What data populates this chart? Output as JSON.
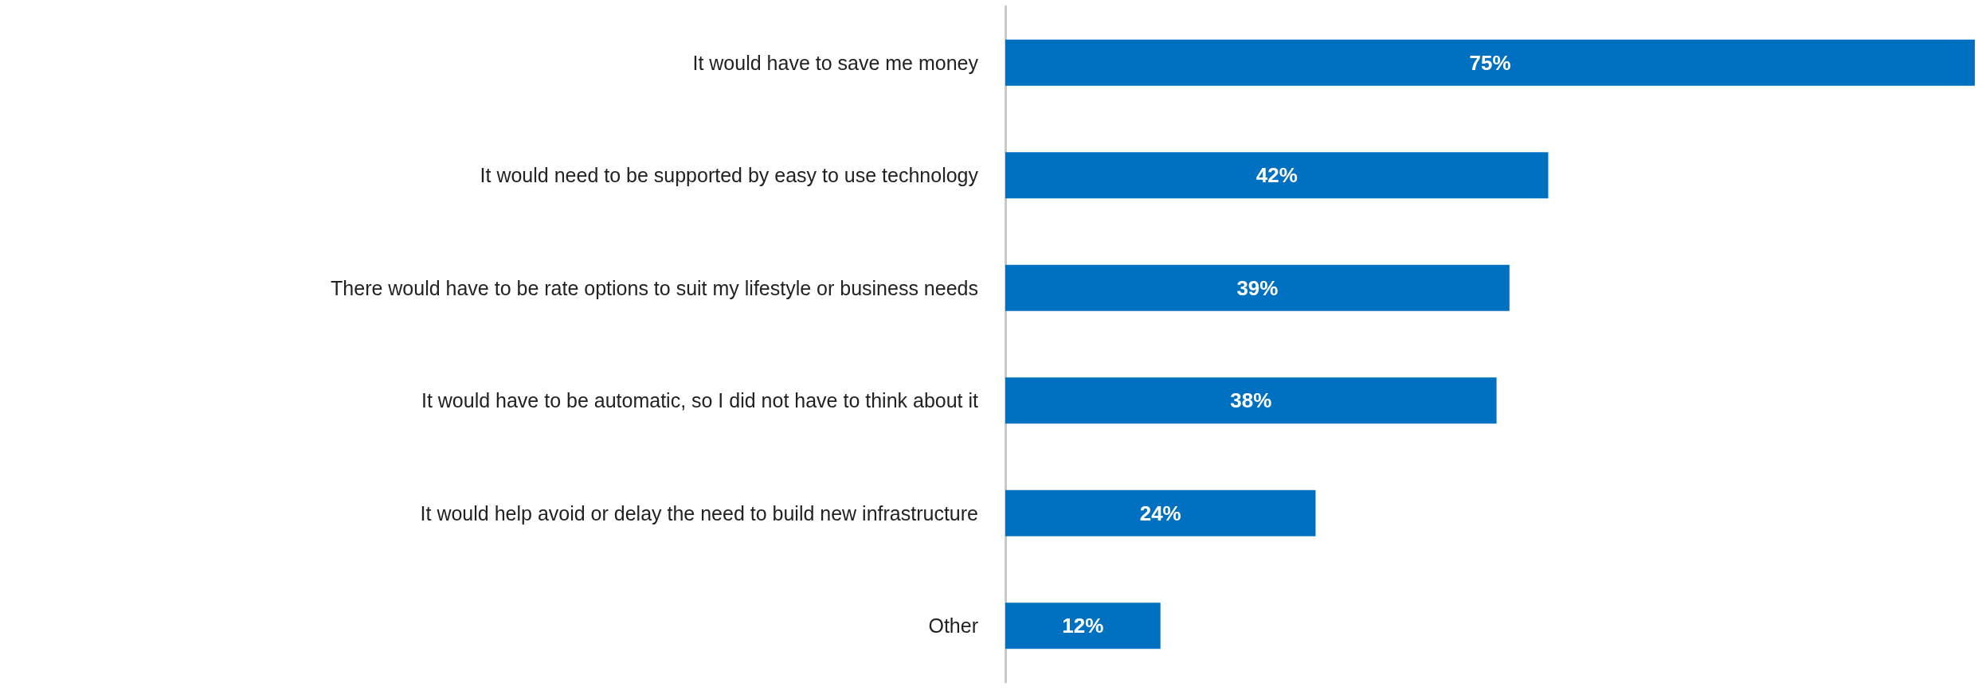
{
  "chart_data": {
    "type": "bar",
    "orientation": "horizontal",
    "categories": [
      "It would have to save me money",
      "It would need to be supported by easy to use technology",
      "There would have to be rate options to suit my lifestyle or business needs",
      "It would have to be automatic, so I did not have to think about it",
      "It would help avoid or delay the need to build new infrastructure",
      "Other"
    ],
    "values": [
      75,
      42,
      39,
      38,
      24,
      12
    ],
    "value_labels": [
      "75%",
      "42%",
      "39%",
      "38%",
      "24%",
      "12%"
    ],
    "color": "#0070c0"
  }
}
